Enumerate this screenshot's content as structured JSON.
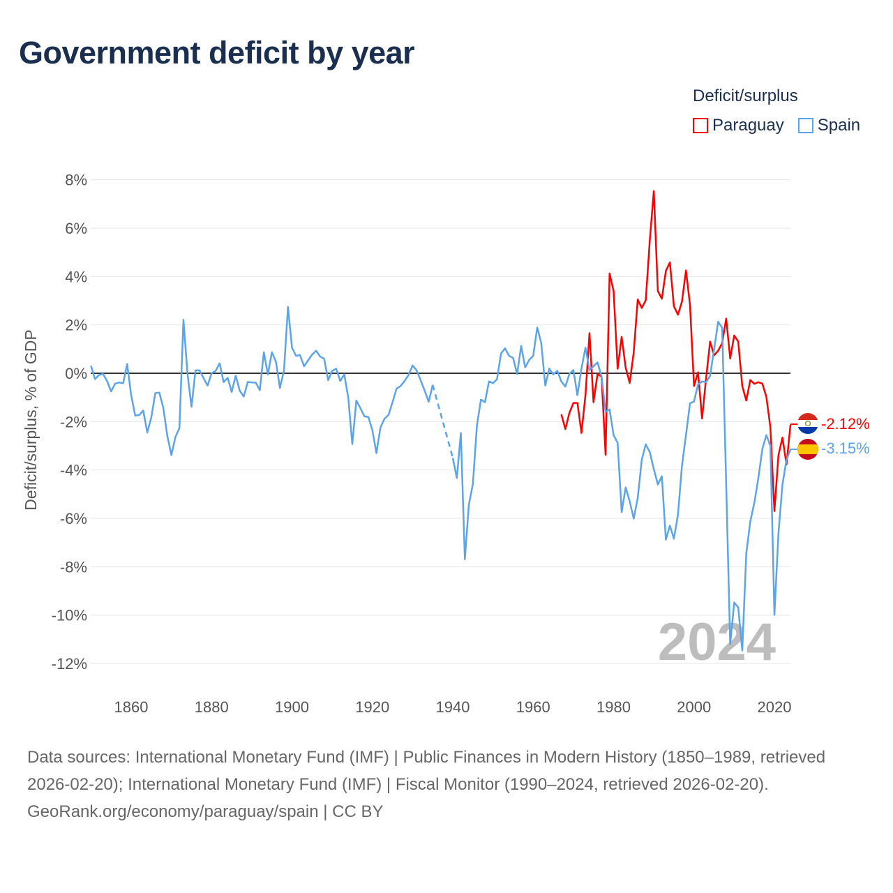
{
  "title": "Government deficit by year",
  "legend": {
    "title": "Deficit/surplus",
    "items": [
      {
        "name": "Paraguay",
        "color": "#ff0000"
      },
      {
        "name": "Spain",
        "color": "#5ca4ea"
      }
    ]
  },
  "year_watermark": "2024",
  "footer": {
    "sources": "Data sources: International Monetary Fund (IMF) | Public Finances in Modern History (1850–1989, retrieved 2026-02-20); International Monetary Fund (IMF) | Fiscal Monitor (1990–2024, retrieved 2026-02-20).",
    "credit": "GeoRank.org/economy/paraguay/spain | CC BY"
  },
  "chart_data": {
    "type": "line",
    "title": "Government deficit by year",
    "xlabel": "",
    "ylabel": "Deficit/surplus, % of GDP",
    "xlim": [
      1850,
      2024
    ],
    "ylim": [
      -13,
      8.5
    ],
    "x_ticks": [
      1860,
      1880,
      1900,
      1920,
      1940,
      1960,
      1980,
      2000,
      2020
    ],
    "y_ticks": [
      8,
      6,
      4,
      2,
      0,
      -2,
      -4,
      -6,
      -8,
      -10,
      -12
    ],
    "y_tick_labels": [
      "8%",
      "6%",
      "4%",
      "2%",
      "0%",
      "-2%",
      "-4%",
      "-6%",
      "-8%",
      "-10%",
      "-12%"
    ],
    "x_tick_labels": [
      "1860",
      "1880",
      "1900",
      "1920",
      "1940",
      "1960",
      "1980",
      "2000",
      "2020"
    ],
    "grid": true,
    "legend_position": "top-right",
    "end_labels": {
      "Paraguay": "-2.12%",
      "Spain": "-3.15%"
    },
    "series": [
      {
        "name": "Paraguay",
        "color": "#ff0000",
        "start_year": 1967,
        "values": [
          -1.7,
          -2.31,
          -1.64,
          -1.23,
          -1.23,
          -2.47,
          -0.91,
          1.66,
          -1.2,
          -0.03,
          -0.14,
          -3.37,
          4.12,
          3.4,
          0.19,
          1.5,
          0.23,
          -0.4,
          0.86,
          3.05,
          2.7,
          3.02,
          5.5,
          7.53,
          3.4,
          3.08,
          4.23,
          4.58,
          2.77,
          2.42,
          2.96,
          4.25,
          2.83,
          -0.53,
          0.04,
          -1.87,
          -0.22,
          1.31,
          0.74,
          0.93,
          1.24,
          2.26,
          0.61,
          1.56,
          1.31,
          -0.53,
          -1.13,
          -0.28,
          -0.44,
          -0.37,
          -0.43,
          -0.98,
          -2.25,
          -5.7,
          -3.39,
          -2.66,
          -3.77,
          -2.12
        ]
      },
      {
        "name": "Spain",
        "color": "#5ca4ea",
        "start_year": 1850,
        "values": [
          0.31,
          -0.24,
          -0.07,
          -0.03,
          -0.32,
          -0.75,
          -0.43,
          -0.38,
          -0.41,
          0.38,
          -0.91,
          -1.75,
          -1.73,
          -1.54,
          -2.45,
          -1.83,
          -0.82,
          -0.8,
          -1.44,
          -2.6,
          -3.38,
          -2.64,
          -2.26,
          2.21,
          0.0,
          -1.39,
          0.12,
          0.12,
          -0.2,
          -0.51,
          0.0,
          0.1,
          0.41,
          -0.37,
          -0.19,
          -0.77,
          -0.1,
          -0.72,
          -0.96,
          -0.36,
          -0.38,
          -0.39,
          -0.7,
          0.87,
          -0.05,
          0.87,
          0.48,
          -0.61,
          0.1,
          2.74,
          1.06,
          0.72,
          0.75,
          0.29,
          0.53,
          0.77,
          0.93,
          0.69,
          0.6,
          -0.29,
          0.1,
          0.19,
          -0.32,
          -0.05,
          -1.01,
          -2.93,
          -1.13,
          -1.44,
          -1.78,
          -1.81,
          -2.36,
          -3.3,
          -2.24,
          -1.88,
          -1.73,
          -1.2,
          -0.64,
          -0.53,
          -0.32,
          -0.07,
          0.32,
          0.12,
          -0.29,
          -0.72,
          -1.18,
          -0.48,
          null,
          null,
          null,
          null,
          -3.5,
          -4.33,
          -2.47,
          -7.69,
          -5.43,
          -4.57,
          -2.16,
          -1.09,
          -1.2,
          -0.34,
          -0.41,
          -0.24,
          0.82,
          1.03,
          0.72,
          0.63,
          -0.03,
          1.13,
          0.24,
          0.55,
          0.72,
          1.89,
          1.25,
          -0.51,
          0.19,
          -0.05,
          0.1,
          -0.34,
          -0.55,
          -0.03,
          0.13,
          -0.91,
          0.19,
          1.06,
          0.13,
          0.29,
          0.45,
          -0.14,
          -1.6,
          -1.5,
          -2.56,
          -2.88,
          -5.74,
          -4.72,
          -5.3,
          -6.01,
          -5.16,
          -3.58,
          -2.94,
          -3.26,
          -3.96,
          -4.6,
          -4.26,
          -6.88,
          -6.3,
          -6.84,
          -5.86,
          -3.83,
          -2.56,
          -1.24,
          -1.17,
          -0.47,
          -0.34,
          -0.37,
          -0.11,
          0.99,
          2.13,
          1.88,
          -4.57,
          -11.2,
          -9.48,
          -9.68,
          -11.46,
          -7.45,
          -6.12,
          -5.36,
          -4.34,
          -3.13,
          -2.56,
          -3.0,
          -9.99,
          -6.63,
          -4.6,
          -3.58,
          -3.15
        ]
      }
    ]
  }
}
